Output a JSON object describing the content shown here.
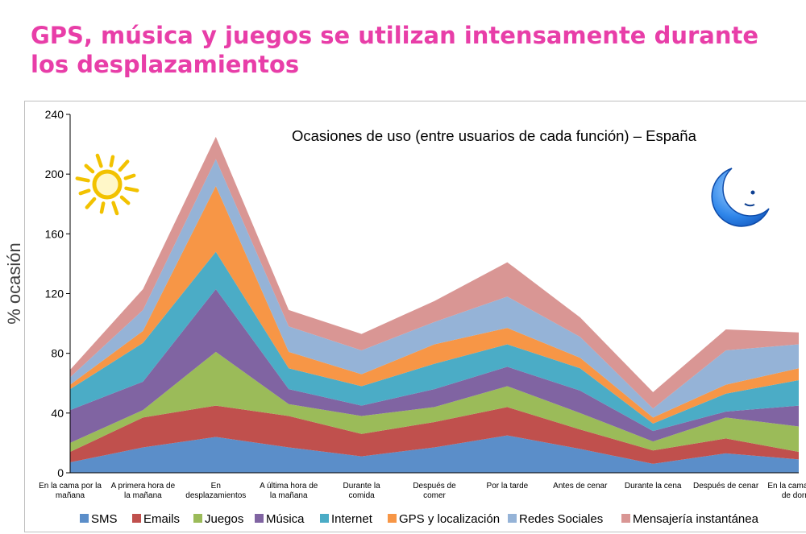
{
  "slide": {
    "title": "GPS, música y juegos se utilizan intensamente durante los desplazamientos"
  },
  "chart_data": {
    "type": "area",
    "stacked": true,
    "title": "Ocasiones de uso (entre usuarios de cada función) – España",
    "ylabel": "% ocasión",
    "xlabel": "",
    "ylim": [
      0,
      240
    ],
    "yticks": [
      0,
      40,
      80,
      120,
      160,
      200,
      240
    ],
    "grid": false,
    "legend_position": "bottom",
    "categories": [
      [
        "En la cama por la",
        "mañana"
      ],
      [
        "A primera hora de",
        "la mañana"
      ],
      [
        "En",
        "desplazamientos"
      ],
      [
        "A última hora de",
        "la mañana"
      ],
      [
        "Durante la",
        "comida"
      ],
      [
        "Después de",
        "comer"
      ],
      [
        "Por la tarde"
      ],
      [
        "Antes de cenar"
      ],
      [
        "Durante la cena"
      ],
      [
        "Después de cenar"
      ],
      [
        "En la cama antes",
        "de dormir"
      ]
    ],
    "series": [
      {
        "name": "SMS",
        "color": "#5b8ec9",
        "values": [
          7,
          17,
          24,
          17,
          11,
          17,
          25,
          16,
          6,
          13,
          9
        ]
      },
      {
        "name": "Emails",
        "color": "#c0504d",
        "values": [
          7,
          20,
          21,
          21,
          15,
          17,
          19,
          13,
          9,
          10,
          5
        ]
      },
      {
        "name": "Juegos",
        "color": "#9bbb59",
        "values": [
          6,
          5,
          36,
          8,
          12,
          10,
          14,
          11,
          6,
          14,
          17
        ]
      },
      {
        "name": "Música",
        "color": "#8064a2",
        "values": [
          22,
          19,
          42,
          10,
          7,
          12,
          13,
          15,
          7,
          4,
          14
        ]
      },
      {
        "name": "Internet",
        "color": "#4bacc6",
        "values": [
          14,
          26,
          25,
          14,
          13,
          17,
          15,
          15,
          5,
          12,
          17
        ]
      },
      {
        "name": "GPS y localización",
        "color": "#f79646",
        "values": [
          3,
          8,
          44,
          11,
          8,
          13,
          11,
          7,
          4,
          6,
          8
        ]
      },
      {
        "name": "Redes Sociales",
        "color": "#95b3d7",
        "values": [
          5,
          14,
          18,
          17,
          16,
          15,
          21,
          14,
          6,
          23,
          16
        ]
      },
      {
        "name": "Mensajería instantánea",
        "color": "#d99694",
        "values": [
          5,
          14,
          15,
          11,
          11,
          14,
          23,
          13,
          11,
          14,
          8
        ]
      }
    ]
  },
  "decorations": {
    "left_icon": "sun-icon",
    "right_icon": "moon-icon",
    "sun_color": "#f6c600",
    "moon_color": "#1f6fe0"
  }
}
